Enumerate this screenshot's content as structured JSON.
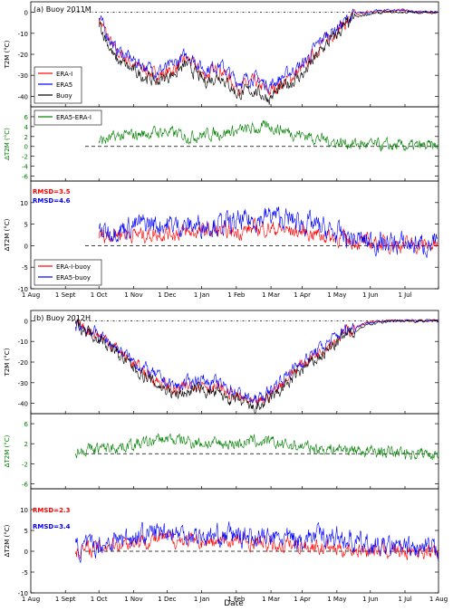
{
  "figure": {
    "xlabel": "Date"
  },
  "colors": {
    "era_i": "#ff0000",
    "era5": "#0000ff",
    "buoy": "#000000",
    "diff_green": "#008000",
    "frame": "#000000"
  },
  "x_ticks": {
    "top": [
      "1 Aug",
      "1 Sept",
      "1 Oct",
      "1 Nov",
      "1 Dec",
      "1 Jan",
      "1 Feb",
      "1 Mar",
      "1 Apr",
      "1 May",
      "1 Jun",
      "1 Jul"
    ],
    "bottom": [
      "1 Aug",
      "1 Sept",
      "1 Oct",
      "1 Nov",
      "1 Dec",
      "1 Jan",
      "1 Feb",
      "1 Mar",
      "1 Apr",
      "1 May",
      "1 Jun",
      "1 Jul",
      "1 Aug"
    ]
  },
  "chart_data": [
    {
      "type": "line",
      "panel": "a-t2m",
      "title": "(a) Buoy 2011M",
      "ylabel": "T2M (°C)",
      "ylim": [
        -45,
        5
      ],
      "yticks": [
        0,
        -10,
        -20,
        -30,
        -40
      ],
      "x_unit": "days since 1 Aug",
      "legend": [
        "ERA-I",
        "ERA5",
        "Buoy"
      ],
      "legend_position": "lower-left",
      "reference_line": 0,
      "series": [
        {
          "name": "ERA-I",
          "color": "#ff0000",
          "x": [
            61,
            75,
            92,
            112,
            125,
            140,
            155,
            170,
            185,
            200,
            213,
            228,
            245,
            260,
            275,
            289,
            300,
            320,
            334,
            345,
            364
          ],
          "y": [
            -3,
            -18,
            -25,
            -30,
            -28,
            -22,
            -30,
            -27,
            -36,
            -33,
            -38,
            -33,
            -26,
            -15,
            -8,
            -2,
            0,
            1,
            1,
            0,
            0
          ]
        },
        {
          "name": "ERA5",
          "color": "#0000ff",
          "x": [
            61,
            75,
            92,
            112,
            125,
            140,
            155,
            170,
            185,
            200,
            213,
            228,
            245,
            260,
            275,
            289,
            300,
            320,
            334,
            345,
            364
          ],
          "y": [
            -3,
            -17,
            -23,
            -28,
            -26,
            -20,
            -27,
            -25,
            -33,
            -31,
            -35,
            -30,
            -24,
            -13,
            -7,
            -1,
            0,
            1,
            1,
            0,
            0
          ]
        },
        {
          "name": "Buoy",
          "color": "#000000",
          "x": [
            61,
            75,
            92,
            112,
            125,
            140,
            155,
            170,
            185,
            200,
            213,
            228,
            245,
            260,
            275,
            289,
            300,
            320,
            334,
            345,
            364
          ],
          "y": [
            -5,
            -22,
            -28,
            -33,
            -30,
            -25,
            -33,
            -30,
            -39,
            -37,
            -41,
            -35,
            -29,
            -18,
            -10,
            -3,
            -1,
            0,
            0,
            0,
            0
          ]
        }
      ]
    },
    {
      "type": "line",
      "panel": "a-diff",
      "ylabel": "ΔT2M (°C)",
      "ylim": [
        -7,
        8
      ],
      "yticks": [
        6,
        4,
        2,
        0,
        -2,
        -4,
        -6
      ],
      "legend": [
        "ERA5-ERA-I"
      ],
      "legend_position": "top-left",
      "reference_line": 0,
      "series": [
        {
          "name": "ERA5-ERA-I",
          "color": "#008000",
          "x": [
            61,
            80,
            100,
            120,
            140,
            160,
            180,
            200,
            215,
            230,
            250,
            270,
            290,
            310,
            330,
            364
          ],
          "y": [
            1,
            2,
            2.5,
            3,
            2,
            2.5,
            3,
            3.5,
            4,
            3,
            2,
            1,
            0.5,
            0.2,
            0,
            0
          ]
        }
      ]
    },
    {
      "type": "line",
      "panel": "a-bias",
      "ylabel": "ΔT2M (°C)",
      "ylim": [
        -10,
        15
      ],
      "yticks": [
        10,
        5,
        0,
        -5,
        -10
      ],
      "annotations": [
        "RMSD=3.5",
        "RMSD=4.6"
      ],
      "legend": [
        "ERA-I-buoy",
        "ERA5-buoy"
      ],
      "legend_position": "lower-left",
      "reference_line": 0,
      "series": [
        {
          "name": "ERA-I-buoy",
          "color": "#ff0000",
          "x": [
            61,
            80,
            100,
            120,
            140,
            160,
            180,
            200,
            215,
            230,
            250,
            270,
            290,
            310,
            330,
            364
          ],
          "y": [
            2,
            3,
            2.5,
            3,
            3,
            3.5,
            3,
            4,
            4,
            3.5,
            3,
            2,
            1,
            0.5,
            0.3,
            0
          ]
        },
        {
          "name": "ERA5-buoy",
          "color": "#0000ff",
          "x": [
            61,
            80,
            100,
            120,
            140,
            160,
            180,
            200,
            215,
            230,
            250,
            270,
            290,
            310,
            330,
            364
          ],
          "y": [
            3,
            4,
            5,
            5,
            4.5,
            5,
            5,
            6,
            7,
            6,
            5,
            3,
            1.5,
            0.8,
            0.4,
            0.2
          ]
        }
      ]
    },
    {
      "type": "line",
      "panel": "b-t2m",
      "title": "(b) Buoy 2012H",
      "ylabel": "T2M (°C)",
      "ylim": [
        -45,
        5
      ],
      "yticks": [
        0,
        -10,
        -20,
        -30,
        -40
      ],
      "reference_line": 0,
      "series": [
        {
          "name": "ERA-I",
          "color": "#ff0000",
          "x": [
            40,
            55,
            70,
            90,
            110,
            130,
            150,
            170,
            190,
            200,
            210,
            225,
            240,
            260,
            280,
            300,
            320,
            345,
            365
          ],
          "y": [
            -2,
            -5,
            -10,
            -20,
            -28,
            -34,
            -30,
            -33,
            -38,
            -41,
            -38,
            -30,
            -22,
            -14,
            -6,
            -1,
            0,
            0,
            0
          ]
        },
        {
          "name": "ERA5",
          "color": "#0000ff",
          "x": [
            40,
            55,
            70,
            90,
            110,
            130,
            150,
            170,
            190,
            200,
            210,
            225,
            240,
            260,
            280,
            300,
            320,
            345,
            365
          ],
          "y": [
            -2,
            -5,
            -10,
            -19,
            -26,
            -32,
            -28,
            -31,
            -36,
            -39,
            -36,
            -28,
            -21,
            -13,
            -5,
            -1,
            0,
            0,
            0
          ]
        },
        {
          "name": "Buoy",
          "color": "#000000",
          "x": [
            40,
            55,
            70,
            90,
            110,
            130,
            150,
            170,
            190,
            200,
            210,
            225,
            240,
            260,
            280,
            300,
            320,
            345,
            365
          ],
          "y": [
            -2,
            -6,
            -12,
            -22,
            -30,
            -36,
            -33,
            -36,
            -40,
            -43,
            -40,
            -33,
            -25,
            -17,
            -8,
            -2,
            0,
            0,
            0
          ]
        }
      ]
    },
    {
      "type": "line",
      "panel": "b-diff",
      "ylabel": "ΔT2M (°C)",
      "ylim": [
        -7,
        8
      ],
      "yticks": [
        6,
        2,
        -2,
        -6
      ],
      "reference_line": 0,
      "series": [
        {
          "name": "ERA5-ERA-I",
          "color": "#008000",
          "x": [
            40,
            60,
            80,
            100,
            120,
            140,
            160,
            180,
            200,
            220,
            240,
            260,
            280,
            300,
            320,
            345,
            365
          ],
          "y": [
            0.5,
            1,
            1.5,
            2,
            3,
            2.5,
            2,
            2,
            2.5,
            2,
            1.5,
            1,
            1,
            0.5,
            0.3,
            0.1,
            0
          ]
        }
      ]
    },
    {
      "type": "line",
      "panel": "b-bias",
      "ylabel": "ΔT2M (°C)",
      "ylim": [
        -10,
        15
      ],
      "yticks": [
        10,
        5,
        0,
        -5,
        -10
      ],
      "annotations": [
        "RMSD=2.3",
        "RMSD=3.4"
      ],
      "reference_line": 0,
      "series": [
        {
          "name": "ERA-I-buoy",
          "color": "#ff0000",
          "x": [
            40,
            60,
            80,
            100,
            120,
            140,
            160,
            180,
            200,
            220,
            240,
            260,
            280,
            300,
            320,
            345,
            365
          ],
          "y": [
            0,
            1,
            2,
            2.5,
            3,
            2.5,
            2,
            2.5,
            2,
            1.5,
            1.5,
            1,
            0.5,
            0.3,
            0.2,
            0,
            0
          ]
        },
        {
          "name": "ERA5-buoy",
          "color": "#0000ff",
          "x": [
            40,
            60,
            80,
            100,
            120,
            140,
            160,
            180,
            200,
            220,
            240,
            260,
            280,
            300,
            320,
            345,
            365
          ],
          "y": [
            0.5,
            1.5,
            3,
            4,
            5,
            4,
            3.5,
            4,
            3.5,
            3,
            3,
            4,
            3,
            1.5,
            0.8,
            0.3,
            0.2
          ]
        }
      ]
    }
  ]
}
